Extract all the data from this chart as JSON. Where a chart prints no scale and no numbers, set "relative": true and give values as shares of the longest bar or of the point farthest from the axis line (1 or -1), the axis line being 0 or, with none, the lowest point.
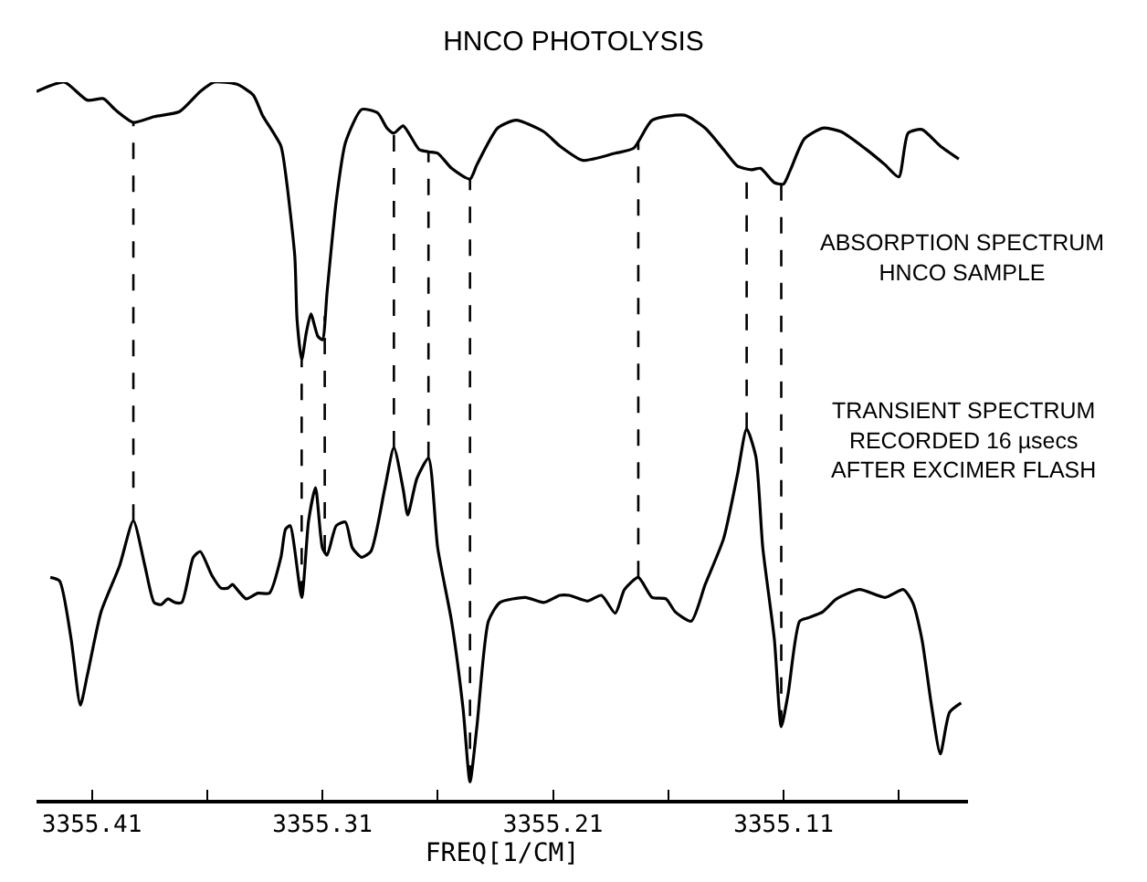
{
  "chart_data": {
    "type": "line",
    "title": "HNCO PHOTOLYSIS",
    "xlabel": "FREQ[1/CM]",
    "relative": true,
    "annotations": [
      "ABSORPTION SPECTRUM\nHNCO SAMPLE",
      "TRANSIENT SPECTRUM\nRECORDED 16 µsecs\nAFTER EXCIMER FLASH"
    ],
    "xlim": [
      3355.434,
      3355.03
    ],
    "xticks": [
      3355.41,
      {
        "value": 3355.36,
        "label": null
      },
      3355.31,
      {
        "value": 3355.26,
        "label": null
      },
      3355.21,
      {
        "value": 3355.16,
        "label": null
      },
      3355.11,
      {
        "value": 3355.06,
        "label": null
      }
    ],
    "marker": "none",
    "line_style": "solid",
    "series": [
      {
        "color": "#000000",
        "x": [
          3355.434,
          3355.422,
          3355.412,
          3355.405,
          3355.4,
          3355.392,
          3355.383,
          3355.372,
          3355.363,
          3355.357,
          3355.347,
          3355.34,
          3355.336,
          3355.328,
          3355.326,
          3355.322,
          3355.321,
          3355.319,
          3355.317,
          3355.315,
          3355.312,
          3355.31,
          3355.308,
          3355.304,
          3355.3,
          3355.293,
          3355.286,
          3355.282,
          3355.279,
          3355.275,
          3355.268,
          3355.264,
          3355.26,
          3355.254,
          3355.246,
          3355.243,
          3355.234,
          3355.226,
          3355.214,
          3355.207,
          3355.197,
          3355.183,
          3355.175,
          3355.167,
          3355.153,
          3355.144,
          3355.136,
          3355.13,
          3355.124,
          3355.12,
          3355.114,
          3355.11,
          3355.107,
          3355.101,
          3355.093,
          3355.085,
          3355.074,
          3355.066,
          3355.06,
          3355.056,
          3355.05,
          3355.042,
          3355.034
        ],
        "values": [
          0.987,
          1.0,
          0.975,
          0.977,
          0.962,
          0.944,
          0.952,
          0.959,
          0.987,
          1.0,
          0.997,
          0.982,
          0.954,
          0.911,
          0.873,
          0.758,
          0.669,
          0.613,
          0.651,
          0.677,
          0.646,
          0.641,
          0.707,
          0.835,
          0.916,
          0.962,
          0.957,
          0.936,
          0.929,
          0.939,
          0.906,
          0.903,
          0.901,
          0.88,
          0.865,
          0.885,
          0.936,
          0.947,
          0.931,
          0.911,
          0.891,
          0.901,
          0.908,
          0.947,
          0.954,
          0.936,
          0.906,
          0.883,
          0.878,
          0.88,
          0.86,
          0.858,
          0.878,
          0.921,
          0.936,
          0.931,
          0.906,
          0.885,
          0.868,
          0.929,
          0.934,
          0.911,
          0.893
        ]
      },
      {
        "color": "#000000",
        "x": [
          3355.428,
          3355.424,
          3355.419,
          3355.415,
          3355.412,
          3355.406,
          3355.398,
          3355.392,
          3355.387,
          3355.383,
          3355.38,
          3355.377,
          3355.374,
          3355.371,
          3355.366,
          3355.363,
          3355.358,
          3355.354,
          3355.351,
          3355.349,
          3355.347,
          3355.343,
          3355.338,
          3355.333,
          3355.328,
          3355.326,
          3355.324,
          3355.319,
          3355.316,
          3355.313,
          3355.31,
          3355.308,
          3355.304,
          3355.3,
          3355.297,
          3355.293,
          3355.289,
          3355.283,
          3355.279,
          3355.275,
          3355.273,
          3355.269,
          3355.264,
          3355.26,
          3355.254,
          3355.249,
          3355.246,
          3355.243,
          3355.238,
          3355.233,
          3355.222,
          3355.214,
          3355.207,
          3355.203,
          3355.195,
          3355.189,
          3355.183,
          3355.179,
          3355.173,
          3355.167,
          3355.161,
          3355.157,
          3355.15,
          3355.144,
          3355.136,
          3355.13,
          3355.126,
          3355.122,
          3355.119,
          3355.114,
          3355.111,
          3355.108,
          3355.103,
          3355.099,
          3355.093,
          3355.087,
          3355.077,
          3355.066,
          3355.058,
          3355.054,
          3355.05,
          3355.046,
          3355.042,
          3355.038,
          3355.033
        ],
        "values": [
          0.31,
          0.305,
          0.224,
          0.132,
          0.173,
          0.262,
          0.326,
          0.389,
          0.326,
          0.275,
          0.272,
          0.28,
          0.275,
          0.275,
          0.338,
          0.346,
          0.313,
          0.295,
          0.295,
          0.3,
          0.293,
          0.28,
          0.288,
          0.288,
          0.338,
          0.377,
          0.382,
          0.282,
          0.389,
          0.435,
          0.351,
          0.341,
          0.382,
          0.387,
          0.351,
          0.338,
          0.346,
          0.433,
          0.491,
          0.433,
          0.397,
          0.448,
          0.476,
          0.351,
          0.249,
          0.127,
          0.025,
          0.102,
          0.249,
          0.275,
          0.282,
          0.275,
          0.285,
          0.285,
          0.277,
          0.285,
          0.26,
          0.293,
          0.31,
          0.282,
          0.28,
          0.262,
          0.249,
          0.3,
          0.364,
          0.453,
          0.517,
          0.478,
          0.351,
          0.224,
          0.102,
          0.148,
          0.249,
          0.254,
          0.262,
          0.28,
          0.293,
          0.282,
          0.293,
          0.275,
          0.224,
          0.135,
          0.064,
          0.122,
          0.135
        ]
      }
    ],
    "ref_lines": [
      {
        "axis": "x",
        "value": 3355.392,
        "line_style": "dashed"
      },
      {
        "axis": "x",
        "value": 3355.319,
        "line_style": "dashed"
      },
      {
        "axis": "x",
        "value": 3355.309,
        "line_style": "dashed"
      },
      {
        "axis": "x",
        "value": 3355.279,
        "line_style": "dashed"
      },
      {
        "axis": "x",
        "value": 3355.264,
        "line_style": "dashed"
      },
      {
        "axis": "x",
        "value": 3355.246,
        "line_style": "dashed"
      },
      {
        "axis": "x",
        "value": 3355.173,
        "line_style": "dashed"
      },
      {
        "axis": "x",
        "value": 3355.126,
        "line_style": "dashed"
      },
      {
        "axis": "x",
        "value": 3355.111,
        "line_style": "dashed"
      }
    ]
  }
}
